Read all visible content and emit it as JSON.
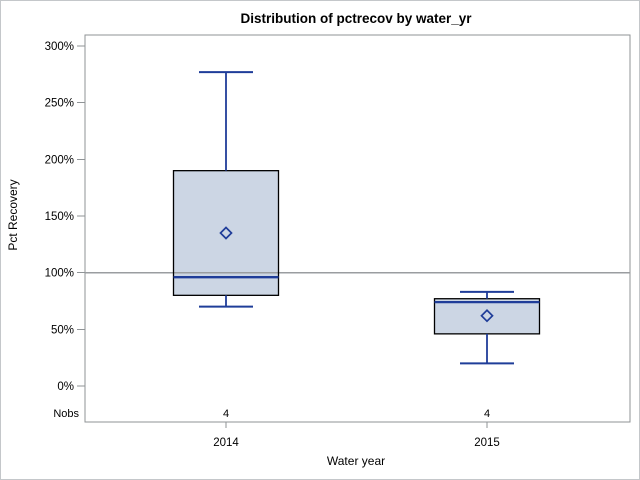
{
  "chart_data": {
    "type": "box",
    "title": "Distribution of pctrecov by water_yr",
    "xlabel": "Water year",
    "ylabel": "Pct Recovery",
    "ylim": [
      0,
      300
    ],
    "y_ticks": [
      {
        "value": 0,
        "label": "0%"
      },
      {
        "value": 50,
        "label": "50%"
      },
      {
        "value": 100,
        "label": "100%"
      },
      {
        "value": 150,
        "label": "150%"
      },
      {
        "value": 200,
        "label": "200%"
      },
      {
        "value": 250,
        "label": "250%"
      },
      {
        "value": 300,
        "label": "300%"
      }
    ],
    "categories": [
      "2014",
      "2015"
    ],
    "series": [
      {
        "category": "2014",
        "nobs": "4",
        "min": 70,
        "q1": 80,
        "median": 96,
        "q3": 190,
        "max": 277,
        "mean": 135
      },
      {
        "category": "2015",
        "nobs": "4",
        "min": 20,
        "q1": 46,
        "median": 74,
        "q3": 77,
        "max": 83,
        "mean": 62
      }
    ],
    "reference_line": 100,
    "nobs_row_label": "Nobs",
    "legend": "none",
    "grid": "off"
  },
  "colors": {
    "background": "#ffffff",
    "outer_border": "#c4c7ca",
    "frame_gray": "#8f9396",
    "refline_gray": "#9a9da0",
    "box_fill": "#ccd6e4",
    "box_border": "#000000",
    "line_navy": "#1f3d99",
    "text": "#000000"
  }
}
